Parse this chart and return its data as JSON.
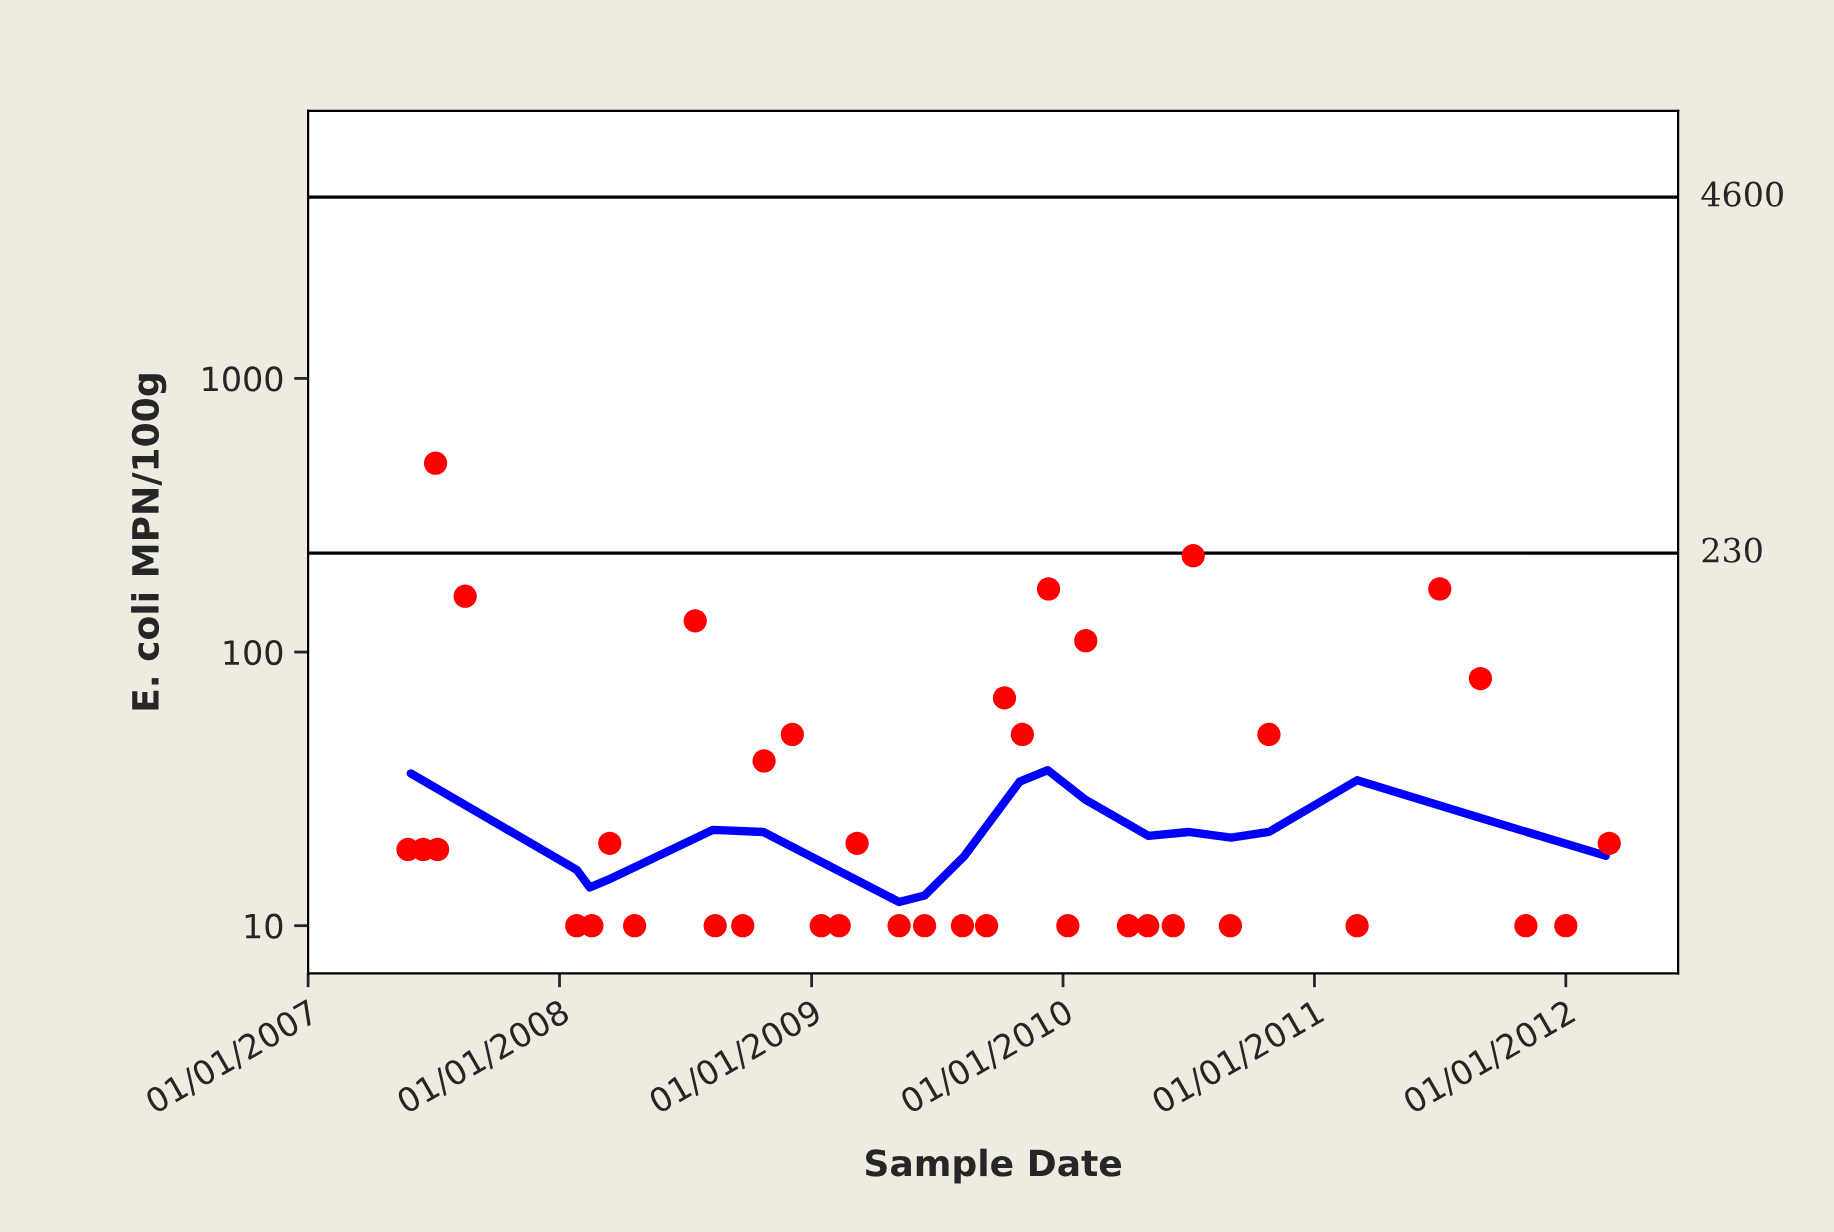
{
  "chart_data": {
    "type": "scatter",
    "xlabel": "Sample Date",
    "ylabel": "E. coli MPN/100g",
    "log": "y",
    "grid": false,
    "legend": false,
    "xlim": [
      "2007-01-01",
      "2012-06-12"
    ],
    "xticks": [
      {
        "value": "2007-01-01",
        "label": "01/01/2007"
      },
      {
        "value": "2008-01-01",
        "label": "01/01/2008"
      },
      {
        "value": "2009-01-01",
        "label": "01/01/2009"
      },
      {
        "value": "2010-01-01",
        "label": "01/01/2010"
      },
      {
        "value": "2011-01-01",
        "label": "01/01/2011"
      },
      {
        "value": "2012-01-01",
        "label": "01/01/2012"
      }
    ],
    "ylim": [
      6.7,
      9500
    ],
    "yticks": [
      10,
      100,
      1000
    ],
    "ref_lines": [
      {
        "axis": "y",
        "value": 230,
        "label": "230",
        "color": "#000000"
      },
      {
        "axis": "y",
        "value": 4600,
        "label": "4600",
        "color": "#000000"
      }
    ],
    "series": [
      {
        "color": "#ff0000",
        "marker": "circle",
        "x": [
          "2007-05-26",
          "2007-06-17",
          "2007-07-08",
          "2007-07-05",
          "2007-08-17",
          "2008-01-26",
          "2008-02-17",
          "2008-03-14",
          "2008-04-19",
          "2008-07-16",
          "2008-08-14",
          "2008-09-23",
          "2008-10-24",
          "2008-12-04",
          "2009-01-15",
          "2009-02-10",
          "2009-03-08",
          "2009-05-08",
          "2009-06-14",
          "2009-08-08",
          "2009-09-12",
          "2009-10-08",
          "2009-11-03",
          "2009-12-11",
          "2010-01-08",
          "2010-02-03",
          "2010-04-06",
          "2010-05-04",
          "2010-06-10",
          "2010-07-09",
          "2010-09-01",
          "2010-10-27",
          "2011-03-04",
          "2011-07-02",
          "2011-08-30",
          "2011-11-04",
          "2012-01-01",
          "2012-03-04"
        ],
        "values": [
          19,
          19,
          19,
          490,
          160,
          10,
          10,
          20,
          10,
          130,
          10,
          10,
          40,
          50,
          10,
          10,
          20,
          10,
          10,
          10,
          10,
          68,
          50,
          170,
          10,
          110,
          10,
          10,
          10,
          225,
          10,
          50,
          10,
          170,
          80,
          10,
          10,
          20
        ]
      },
      {
        "type": "line",
        "color": "#0000ff",
        "marker": "none",
        "line_style": "solid",
        "x": [
          "2007-05-30",
          "2008-01-26",
          "2008-02-14",
          "2008-03-11",
          "2008-08-11",
          "2008-10-23",
          "2009-05-08",
          "2009-06-14",
          "2009-08-11",
          "2009-10-30",
          "2009-12-10",
          "2010-02-03",
          "2010-05-05",
          "2010-07-02",
          "2010-09-02",
          "2010-10-27",
          "2011-03-04",
          "2011-08-29",
          "2012-02-28"
        ],
        "values": [
          36,
          16,
          13.8,
          14.7,
          22.4,
          22,
          12.2,
          12.9,
          18,
          33.6,
          37,
          28.8,
          21.3,
          22,
          21,
          22,
          34,
          24.8,
          18
        ]
      }
    ]
  }
}
